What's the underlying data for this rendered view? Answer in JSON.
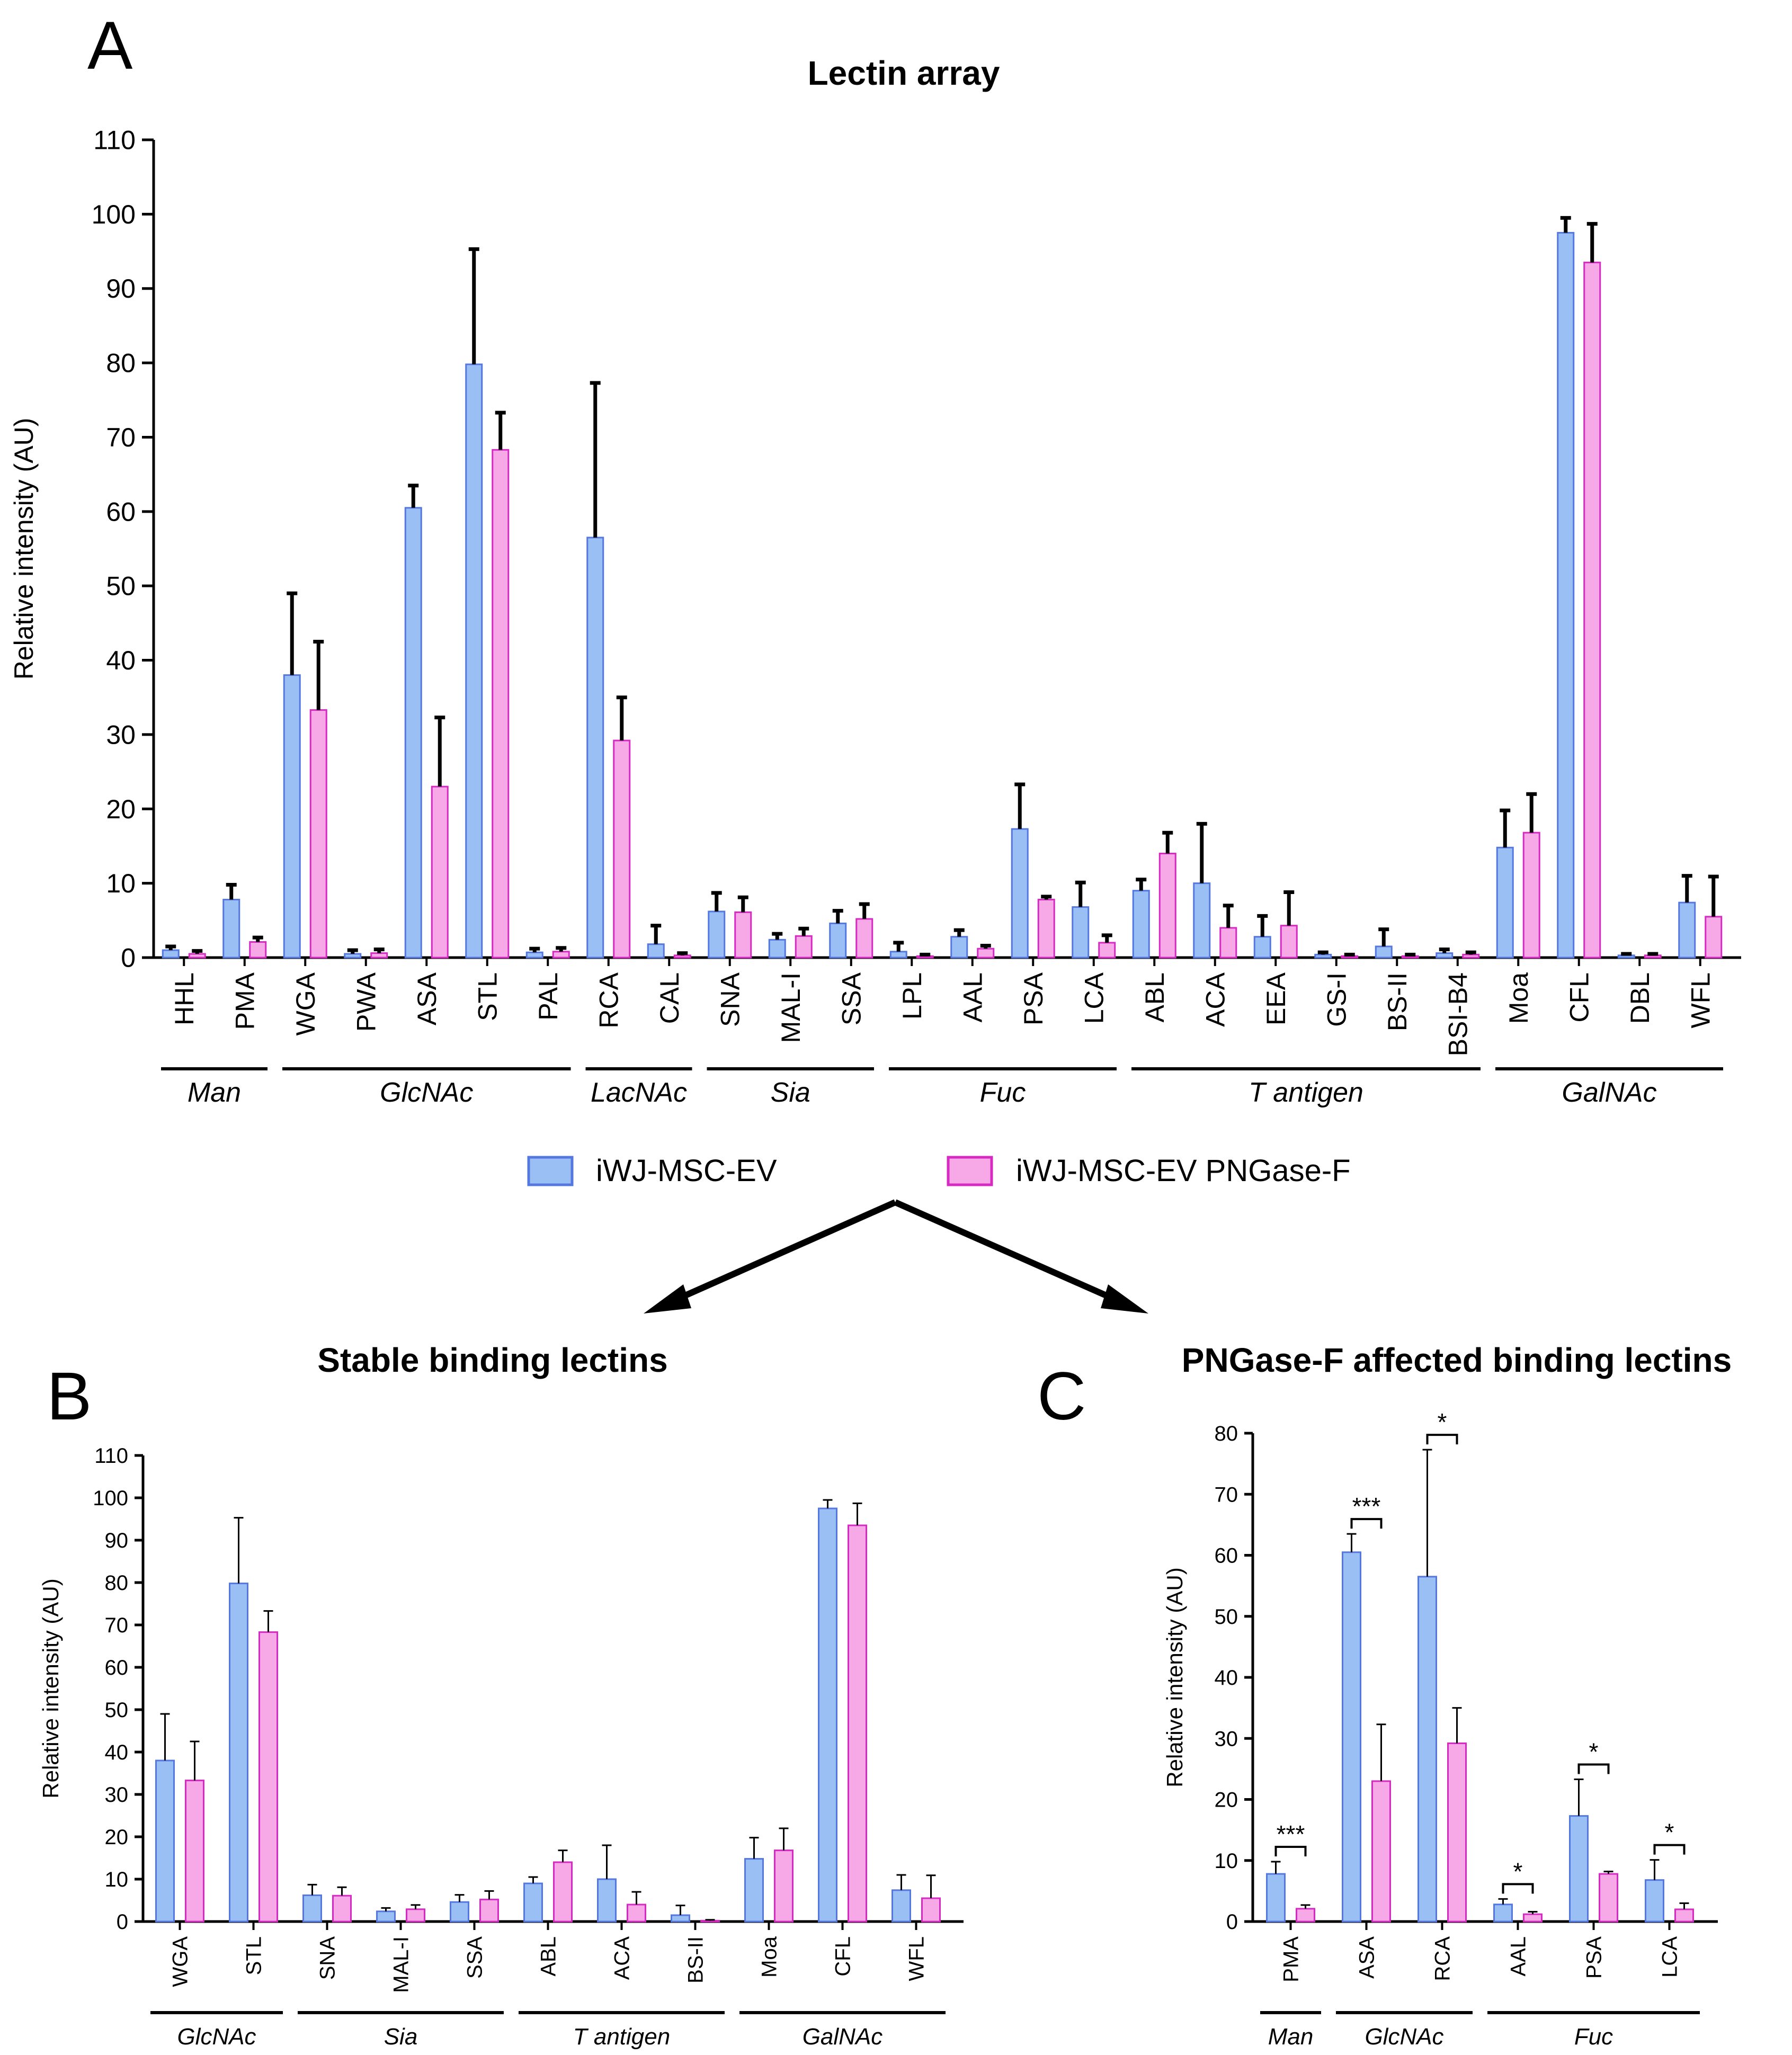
{
  "panels": {
    "a": {
      "letter": "A",
      "title": "Lectin array"
    },
    "b": {
      "letter": "B",
      "title": "Stable binding lectins"
    },
    "c": {
      "letter": "C",
      "title": "PNGase-F affected binding lectins"
    }
  },
  "legend": {
    "series1": "iWJ-MSC-EV",
    "series2": "iWJ-MSC-EV PNGase-F"
  },
  "colors": {
    "series1_fill": "#99bff5",
    "series1_edge": "#5577e0",
    "series2_fill": "#f7a8e6",
    "series2_edge": "#d62ac3",
    "error": "#000000"
  },
  "chart_data": [
    {
      "id": "A",
      "type": "bar",
      "title": "Lectin array",
      "ylabel": "Relative intensity (AU)",
      "ylim": [
        0,
        110
      ],
      "yticks": [
        0,
        10,
        20,
        30,
        40,
        50,
        60,
        70,
        80,
        90,
        100,
        110
      ],
      "categories": [
        "HHL",
        "PMA",
        "WGA",
        "PWA",
        "ASA",
        "STL",
        "PAL",
        "RCA",
        "CAL",
        "SNA",
        "MAL-I",
        "SSA",
        "LPL",
        "AAL",
        "PSA",
        "LCA",
        "ABL",
        "ACA",
        "EEA",
        "GS-I",
        "BS-II",
        "BSI-B4",
        "Moa",
        "CFL",
        "DBL",
        "WFL"
      ],
      "series": [
        {
          "name": "iWJ-MSC-EV",
          "values": [
            1.0,
            7.8,
            38.0,
            0.5,
            60.5,
            79.8,
            0.7,
            56.5,
            1.8,
            6.2,
            2.4,
            4.6,
            0.8,
            2.8,
            17.3,
            6.8,
            9.0,
            10.0,
            2.8,
            0.4,
            1.5,
            0.6,
            14.8,
            97.5,
            0.3,
            7.4
          ],
          "errors": [
            0.5,
            2.0,
            11.0,
            0.5,
            3.0,
            15.5,
            0.5,
            20.8,
            2.5,
            2.5,
            0.8,
            1.7,
            1.2,
            0.9,
            6.0,
            3.3,
            1.5,
            8.0,
            2.8,
            0.3,
            2.3,
            0.5,
            5.0,
            2.0,
            0.2,
            3.6
          ]
        },
        {
          "name": "iWJ-MSC-EV PNGase-F",
          "values": [
            0.5,
            2.1,
            33.3,
            0.6,
            23.0,
            68.3,
            0.8,
            29.2,
            0.3,
            6.1,
            2.9,
            5.2,
            0.2,
            1.2,
            7.8,
            2.0,
            14.0,
            4.0,
            4.3,
            0.2,
            0.2,
            0.4,
            16.8,
            93.5,
            0.3,
            5.5
          ],
          "errors": [
            0.4,
            0.6,
            9.2,
            0.5,
            9.3,
            5.0,
            0.5,
            5.8,
            0.3,
            2.0,
            1.0,
            2.0,
            0.2,
            0.4,
            0.4,
            1.0,
            2.8,
            3.0,
            4.5,
            0.2,
            0.2,
            0.3,
            5.2,
            5.2,
            0.2,
            5.4
          ]
        }
      ],
      "groups": [
        {
          "label": "Man",
          "from": 0,
          "to": 1
        },
        {
          "label": "GlcNAc",
          "from": 2,
          "to": 6
        },
        {
          "label": "LacNAc",
          "from": 7,
          "to": 8
        },
        {
          "label": "Sia",
          "from": 9,
          "to": 11
        },
        {
          "label": "Fuc",
          "from": 12,
          "to": 15
        },
        {
          "label": "T antigen",
          "from": 16,
          "to": 21
        },
        {
          "label": "GalNAc",
          "from": 22,
          "to": 25
        }
      ],
      "legend_position": "bottom"
    },
    {
      "id": "B",
      "type": "bar",
      "title": "Stable binding lectins",
      "ylabel": "Relative intensity (AU)",
      "ylim": [
        0,
        110
      ],
      "yticks": [
        0,
        10,
        20,
        30,
        40,
        50,
        60,
        70,
        80,
        90,
        100,
        110
      ],
      "categories": [
        "WGA",
        "STL",
        "SNA",
        "MAL-I",
        "SSA",
        "ABL",
        "ACA",
        "BS-II",
        "Moa",
        "CFL",
        "WFL"
      ],
      "series": [
        {
          "name": "iWJ-MSC-EV",
          "values": [
            38.0,
            79.8,
            6.2,
            2.4,
            4.6,
            9.0,
            10.0,
            1.5,
            14.8,
            97.5,
            7.4
          ],
          "errors": [
            11.0,
            15.5,
            2.5,
            0.8,
            1.7,
            1.5,
            8.0,
            2.3,
            5.0,
            2.0,
            3.6
          ]
        },
        {
          "name": "iWJ-MSC-EV PNGase-F",
          "values": [
            33.3,
            68.3,
            6.1,
            2.9,
            5.2,
            14.0,
            4.0,
            0.2,
            16.8,
            93.5,
            5.5
          ],
          "errors": [
            9.2,
            5.0,
            2.0,
            1.0,
            2.0,
            2.8,
            3.0,
            0.2,
            5.2,
            5.2,
            5.4
          ]
        }
      ],
      "groups": [
        {
          "label": "GlcNAc",
          "from": 0,
          "to": 1
        },
        {
          "label": "Sia",
          "from": 2,
          "to": 4
        },
        {
          "label": "T antigen",
          "from": 5,
          "to": 7
        },
        {
          "label": "GalNAc",
          "from": 8,
          "to": 10
        }
      ]
    },
    {
      "id": "C",
      "type": "bar",
      "title": "PNGase-F affected binding lectins",
      "ylabel": "Relative intensity (AU)",
      "ylim": [
        0,
        80
      ],
      "yticks": [
        0,
        10,
        20,
        30,
        40,
        50,
        60,
        70,
        80
      ],
      "categories": [
        "PMA",
        "ASA",
        "RCA",
        "AAL",
        "PSA",
        "LCA"
      ],
      "series": [
        {
          "name": "iWJ-MSC-EV",
          "values": [
            7.8,
            60.5,
            56.5,
            2.8,
            17.3,
            6.8
          ],
          "errors": [
            2.0,
            3.0,
            20.8,
            0.9,
            6.0,
            3.3
          ]
        },
        {
          "name": "iWJ-MSC-EV PNGase-F",
          "values": [
            2.1,
            23.0,
            29.2,
            1.2,
            7.8,
            2.0
          ],
          "errors": [
            0.6,
            9.3,
            5.8,
            0.4,
            0.4,
            1.0
          ]
        }
      ],
      "significance": [
        "***",
        "***",
        "*",
        "*",
        "*",
        "*"
      ],
      "groups": [
        {
          "label": "Man",
          "from": 0,
          "to": 0
        },
        {
          "label": "GlcNAc",
          "from": 1,
          "to": 2
        },
        {
          "label": "Fuc",
          "from": 3,
          "to": 5
        }
      ]
    }
  ]
}
